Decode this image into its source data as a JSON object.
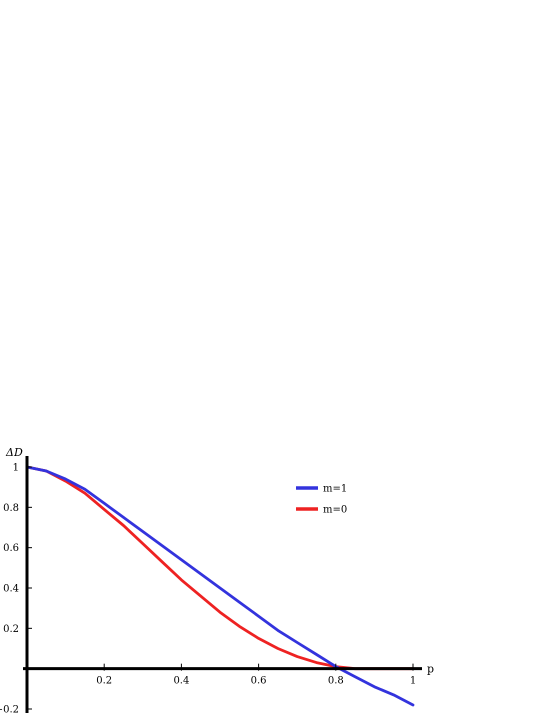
{
  "chart_data": {
    "type": "line",
    "title": "",
    "xlabel": "p",
    "ylabel": "ΔD",
    "xlim": [
      0,
      1.05
    ],
    "ylim": [
      -0.2,
      1.0
    ],
    "grid": false,
    "legend_position": "top-right",
    "x_ticks": [
      {
        "value": 0.2,
        "label": "0.2"
      },
      {
        "value": 0.4,
        "label": "0.4"
      },
      {
        "value": 0.6,
        "label": "0.6"
      },
      {
        "value": 0.8,
        "label": "0.8"
      },
      {
        "value": 1.0,
        "label": "1"
      }
    ],
    "y_ticks": [
      {
        "value": 1.0,
        "label": "1"
      },
      {
        "value": 0.8,
        "label": "0.8"
      },
      {
        "value": 0.6,
        "label": "0.6"
      },
      {
        "value": 0.4,
        "label": "0.4"
      },
      {
        "value": 0.2,
        "label": "0.2"
      },
      {
        "value": -0.2,
        "label": "−0.2"
      }
    ],
    "series": [
      {
        "name": "m=1",
        "color": "#3333dd",
        "x": [
          0,
          0.05,
          0.1,
          0.15,
          0.2,
          0.25,
          0.3,
          0.35,
          0.4,
          0.45,
          0.5,
          0.55,
          0.6,
          0.65,
          0.7,
          0.75,
          0.8,
          0.85,
          0.9,
          0.95,
          1.0
        ],
        "y": [
          1.0,
          0.98,
          0.94,
          0.89,
          0.82,
          0.75,
          0.68,
          0.61,
          0.54,
          0.47,
          0.4,
          0.33,
          0.26,
          0.19,
          0.13,
          0.07,
          0.01,
          -0.04,
          -0.09,
          -0.13,
          -0.18
        ]
      },
      {
        "name": "m=0",
        "color": "#ee2222",
        "x": [
          0,
          0.05,
          0.1,
          0.15,
          0.2,
          0.25,
          0.3,
          0.35,
          0.4,
          0.45,
          0.5,
          0.55,
          0.6,
          0.65,
          0.7,
          0.75,
          0.8,
          0.85,
          0.9,
          0.95,
          1.0
        ],
        "y": [
          1.0,
          0.98,
          0.93,
          0.87,
          0.79,
          0.71,
          0.62,
          0.53,
          0.44,
          0.36,
          0.28,
          0.21,
          0.15,
          0.1,
          0.06,
          0.03,
          0.01,
          0.0,
          0.0,
          0.0,
          0.0
        ]
      }
    ]
  }
}
